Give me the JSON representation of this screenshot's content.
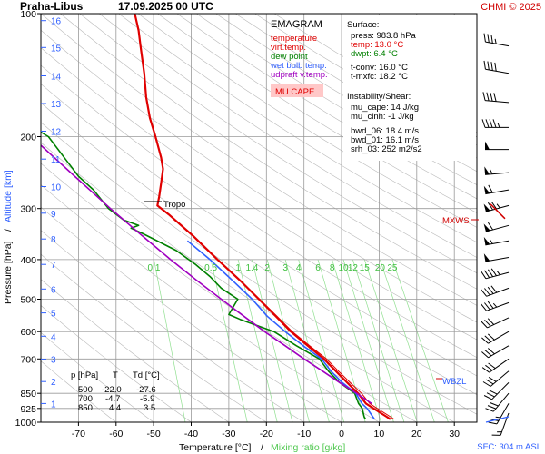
{
  "header": {
    "station": "Praha-Libus",
    "datetime": "17.09.2025 00 UTC",
    "credit": "CHMI © 2025"
  },
  "legend": {
    "title": "EMAGRAM",
    "items": [
      {
        "label": "temperature",
        "color": "#e00000"
      },
      {
        "label": "virt.temp.",
        "color": "#e00000"
      },
      {
        "label": "dew point",
        "color": "#008000"
      },
      {
        "label": "wet bulb temp.",
        "color": "#3060ff"
      },
      {
        "label": "udpraft v.temp.",
        "color": "#a000c0"
      }
    ],
    "mu_cape_badge": "MU CAPE"
  },
  "info": {
    "surface_title": "Surface:",
    "press": "press: 983.8 hPa",
    "temp": "temp: 13.0 °C",
    "dwpt": "dwpt: 6.4 °C",
    "tconv": "t-conv: 16.0 °C",
    "tmxfc": "t-mxfc: 18.2 °C",
    "shear_title": "Instability/Shear:",
    "mu_cape": "mu_cape: 14 J/kg",
    "mu_cinh": "mu_cinh: -1 J/kg",
    "bwd_06": "bwd_06: 18.4 m/s",
    "bwd_01": "bwd_01: 16.1 m/s",
    "srh_03": "srh_03: 252 m2/s2"
  },
  "table": {
    "headers": [
      "p [hPa]",
      "T",
      "Td [°C]"
    ],
    "rows": [
      [
        "500",
        "-22.0",
        "-27.6"
      ],
      [
        "700",
        "-4.7",
        "-5.9"
      ],
      [
        "850",
        "4.4",
        "3.5"
      ]
    ]
  },
  "labels": {
    "tropo": "Tropo",
    "mxws": "MXWS",
    "wbzl": "WBZL",
    "sfc": "SFC: 304 m ASL"
  },
  "axes": {
    "xlabel_temp": "Temperature [°C]",
    "xlabel_sep": "/",
    "xlabel_mix": "Mixing ratio [g/kg]",
    "ylabel_p": "Pressure [hPa]",
    "ylabel_sep": "/",
    "ylabel_alt": "Altitude [km]"
  },
  "chart_data": {
    "type": "line",
    "x_range": [
      -80,
      36
    ],
    "p_range": [
      100,
      1000
    ],
    "y_scale": "log-pressure",
    "pressure_ticks": [
      100,
      200,
      300,
      400,
      500,
      600,
      700,
      850,
      925,
      1000
    ],
    "temp_ticks": [
      -70,
      -60,
      -50,
      -40,
      -30,
      -20,
      -10,
      0,
      10,
      20,
      30
    ],
    "altitude_ticks": [
      {
        "km": 1,
        "p": 900
      },
      {
        "km": 2,
        "p": 795
      },
      {
        "km": 3,
        "p": 701
      },
      {
        "km": 4,
        "p": 616
      },
      {
        "km": 5,
        "p": 540
      },
      {
        "km": 6,
        "p": 472
      },
      {
        "km": 7,
        "p": 411
      },
      {
        "km": 8,
        "p": 356
      },
      {
        "km": 9,
        "p": 308
      },
      {
        "km": 10,
        "p": 265
      },
      {
        "km": 11,
        "p": 227
      },
      {
        "km": 12,
        "p": 194
      },
      {
        "km": 13,
        "p": 166
      },
      {
        "km": 14,
        "p": 142
      },
      {
        "km": 15,
        "p": 121
      },
      {
        "km": 16,
        "p": 104
      }
    ],
    "mixing_ratio_labels": [
      "0.1",
      "0.5",
      "1",
      "1.4",
      "2",
      "3",
      "4",
      "6",
      "8",
      "10",
      "12",
      "15",
      "20",
      "25"
    ],
    "series": [
      {
        "name": "temperature",
        "color": "#e00000",
        "points": [
          [
            13.0,
            983.8
          ],
          [
            12.0,
            970
          ],
          [
            8.5,
            925
          ],
          [
            6.5,
            900
          ],
          [
            4.4,
            850
          ],
          [
            1.5,
            800
          ],
          [
            -1.5,
            750
          ],
          [
            -4.7,
            700
          ],
          [
            -9,
            650
          ],
          [
            -13.5,
            600
          ],
          [
            -17.5,
            550
          ],
          [
            -22.0,
            500
          ],
          [
            -27,
            450
          ],
          [
            -33,
            400
          ],
          [
            -39.5,
            350
          ],
          [
            -46,
            310
          ],
          [
            -49,
            295
          ],
          [
            -48.5,
            280
          ],
          [
            -48,
            260
          ],
          [
            -47.5,
            240
          ],
          [
            -48,
            225
          ],
          [
            -49.5,
            200
          ],
          [
            -51,
            180
          ],
          [
            -52,
            160
          ],
          [
            -52.5,
            140
          ],
          [
            -53.5,
            120
          ],
          [
            -54,
            110
          ],
          [
            -55,
            100
          ]
        ]
      },
      {
        "name": "virt.temp.",
        "color": "#e00000",
        "points": [
          [
            14.0,
            983.8
          ],
          [
            13.0,
            970
          ],
          [
            9.5,
            925
          ],
          [
            7.5,
            900
          ],
          [
            5.3,
            850
          ],
          [
            2.3,
            800
          ],
          [
            -0.8,
            750
          ],
          [
            -4.0,
            700
          ],
          [
            -8.5,
            650
          ],
          [
            -13.1,
            600
          ],
          [
            -17.2,
            550
          ],
          [
            -21.8,
            500
          ],
          [
            -26.9,
            450
          ],
          [
            -32.9,
            400
          ],
          [
            -39.4,
            350
          ],
          [
            -46,
            310
          ],
          [
            -49,
            295
          ],
          [
            -48.5,
            280
          ],
          [
            -48,
            260
          ],
          [
            -47.5,
            240
          ],
          [
            -48,
            225
          ],
          [
            -49.5,
            200
          ],
          [
            -51,
            180
          ],
          [
            -52,
            160
          ],
          [
            -52.5,
            140
          ],
          [
            -53.5,
            120
          ],
          [
            -54,
            110
          ],
          [
            -55,
            100
          ]
        ]
      },
      {
        "name": "dew point",
        "color": "#008000",
        "points": [
          [
            6.4,
            983.8
          ],
          [
            6.0,
            970
          ],
          [
            5.5,
            925
          ],
          [
            4.5,
            900
          ],
          [
            3.5,
            850
          ],
          [
            -0.5,
            800
          ],
          [
            -3.5,
            750
          ],
          [
            -5.9,
            700
          ],
          [
            -12,
            650
          ],
          [
            -18,
            600
          ],
          [
            -27,
            560
          ],
          [
            -30,
            545
          ],
          [
            -27.6,
            500
          ],
          [
            -32,
            470
          ],
          [
            -35,
            440
          ],
          [
            -39,
            410
          ],
          [
            -44,
            380
          ],
          [
            -53,
            345
          ],
          [
            -56,
            335
          ],
          [
            -54,
            330
          ],
          [
            -58,
            320
          ],
          [
            -62,
            300
          ],
          [
            -66,
            270
          ],
          [
            -70,
            250
          ],
          [
            -73,
            230
          ],
          [
            -78,
            200
          ],
          [
            -80,
            195
          ]
        ]
      },
      {
        "name": "wet bulb temp.",
        "color": "#3060ff",
        "points": [
          [
            8.8,
            983.8
          ],
          [
            8.3,
            970
          ],
          [
            6.8,
            925
          ],
          [
            5.4,
            900
          ],
          [
            3.8,
            850
          ],
          [
            0.2,
            800
          ],
          [
            -2.8,
            750
          ],
          [
            -5.3,
            700
          ],
          [
            -10.2,
            650
          ],
          [
            -15.0,
            600
          ],
          [
            -19.8,
            550
          ],
          [
            -23.8,
            500
          ],
          [
            -29,
            450
          ],
          [
            -35,
            400
          ],
          [
            -41,
            360
          ]
        ]
      },
      {
        "name": "udpraft v.temp.",
        "color": "#a000c0",
        "points": [
          [
            8.0,
            900
          ],
          [
            4.0,
            850
          ],
          [
            -0.5,
            800
          ],
          [
            -5.0,
            750
          ],
          [
            -10.0,
            700
          ],
          [
            -15.0,
            650
          ],
          [
            -20.5,
            600
          ],
          [
            -26.0,
            550
          ],
          [
            -32.0,
            500
          ],
          [
            -38.5,
            450
          ],
          [
            -45.5,
            400
          ],
          [
            -53.0,
            350
          ],
          [
            -61.5,
            300
          ],
          [
            -71.0,
            250
          ],
          [
            -80.0,
            210
          ]
        ]
      }
    ]
  },
  "wind_barbs": {
    "levels": [
      {
        "p": 120,
        "dir": 280,
        "kt": 35
      },
      {
        "p": 140,
        "dir": 280,
        "kt": 40
      },
      {
        "p": 165,
        "dir": 275,
        "kt": 40
      },
      {
        "p": 190,
        "dir": 270,
        "kt": 45
      },
      {
        "p": 215,
        "dir": 270,
        "kt": 50
      },
      {
        "p": 245,
        "dir": 265,
        "kt": 55
      },
      {
        "p": 270,
        "dir": 260,
        "kt": 60
      },
      {
        "p": 295,
        "dir": 255,
        "kt": 75
      },
      {
        "p": 330,
        "dir": 255,
        "kt": 60
      },
      {
        "p": 360,
        "dir": 260,
        "kt": 55
      },
      {
        "p": 395,
        "dir": 260,
        "kt": 50
      },
      {
        "p": 430,
        "dir": 255,
        "kt": 45
      },
      {
        "p": 470,
        "dir": 250,
        "kt": 40
      },
      {
        "p": 510,
        "dir": 250,
        "kt": 35
      },
      {
        "p": 555,
        "dir": 245,
        "kt": 30
      },
      {
        "p": 600,
        "dir": 240,
        "kt": 30
      },
      {
        "p": 650,
        "dir": 240,
        "kt": 30
      },
      {
        "p": 700,
        "dir": 235,
        "kt": 30
      },
      {
        "p": 750,
        "dir": 230,
        "kt": 30
      },
      {
        "p": 800,
        "dir": 225,
        "kt": 30
      },
      {
        "p": 850,
        "dir": 220,
        "kt": 30
      },
      {
        "p": 900,
        "dir": 210,
        "kt": 25
      },
      {
        "p": 950,
        "dir": 200,
        "kt": 15
      }
    ],
    "mxws_p": 308,
    "wbzl_p": 795
  }
}
